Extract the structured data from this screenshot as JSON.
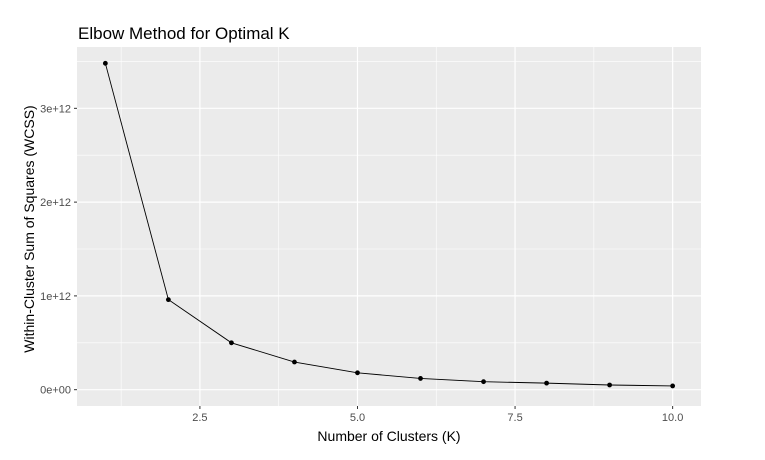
{
  "chart_data": {
    "type": "line",
    "title": "Elbow Method for Optimal K",
    "xlabel": "Number of Clusters (K)",
    "ylabel": "Within-Cluster Sum of Squares (WCSS)",
    "x": [
      1,
      2,
      3,
      4,
      5,
      6,
      7,
      8,
      9,
      10
    ],
    "series": [
      {
        "values": [
          3480000000000.0,
          960000000000.0,
          500000000000.0,
          295000000000.0,
          180000000000.0,
          120000000000.0,
          85000000000.0,
          70000000000.0,
          50000000000.0,
          40000000000.0
        ]
      }
    ],
    "xlim": [
      0.55,
      10.45
    ],
    "ylim": [
      -174000000000.0,
      3654000000000.0
    ],
    "x_ticks": [
      {
        "value": 2.5,
        "label": "2.5"
      },
      {
        "value": 5.0,
        "label": "5.0"
      },
      {
        "value": 7.5,
        "label": "7.5"
      },
      {
        "value": 10.0,
        "label": "10.0"
      }
    ],
    "y_ticks": [
      {
        "value": 0,
        "label": "0e+00"
      },
      {
        "value": 1000000000000.0,
        "label": "1e+12"
      },
      {
        "value": 2000000000000.0,
        "label": "2e+12"
      },
      {
        "value": 3000000000000.0,
        "label": "3e+12"
      }
    ],
    "grid": true,
    "legend": "none",
    "colors": {
      "panel_background": "#EBEBEB",
      "grid_major": "#FFFFFF",
      "line": "#000000",
      "point": "#000000",
      "tick_text": "#4D4D4D",
      "tick_mark": "#333333"
    }
  }
}
